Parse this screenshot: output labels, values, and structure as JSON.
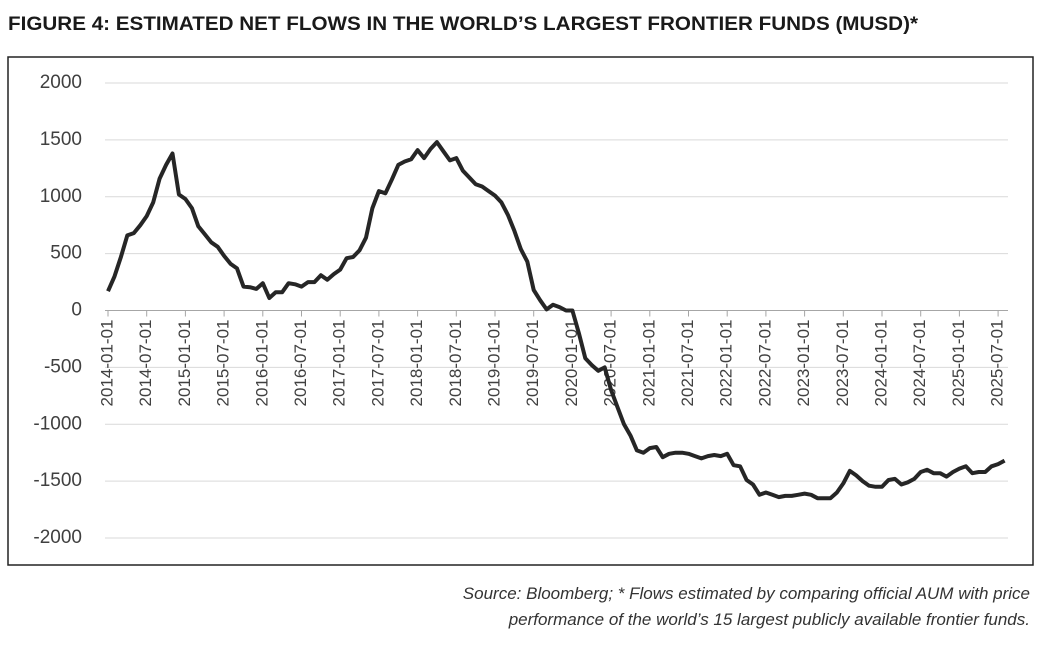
{
  "chart_data": {
    "type": "line",
    "title": "FIGURE 4: ESTIMATED NET FLOWS IN THE WORLD’S LARGEST FRONTIER FUNDS (MUSD)*",
    "footnote": [
      "Source: Bloomberg; * Flows estimated by comparing official AUM with price",
      "performance of the world’s 15 largest publicly available frontier funds."
    ],
    "categories": [
      "2014-01-01",
      null,
      null,
      null,
      null,
      null,
      "2014-07-01",
      null,
      null,
      null,
      null,
      null,
      "2015-01-01",
      null,
      null,
      null,
      null,
      null,
      "2015-07-01",
      null,
      null,
      null,
      null,
      null,
      "2016-01-01",
      null,
      null,
      null,
      null,
      null,
      "2016-07-01",
      null,
      null,
      null,
      null,
      null,
      "2017-01-01",
      null,
      null,
      null,
      null,
      null,
      "2017-07-01",
      null,
      null,
      null,
      null,
      null,
      "2018-01-01",
      null,
      null,
      null,
      null,
      null,
      "2018-07-01",
      null,
      null,
      null,
      null,
      null,
      "2019-01-01",
      null,
      null,
      null,
      null,
      null,
      "2019-07-01",
      null,
      null,
      null,
      null,
      null,
      "2020-01-01",
      null,
      null,
      null,
      null,
      null,
      "2020-07-01",
      null,
      null,
      null,
      null,
      null,
      "2021-01-01",
      null,
      null,
      null,
      null,
      null,
      "2021-07-01",
      null,
      null,
      null,
      null,
      null,
      "2022-01-01",
      null,
      null,
      null,
      null,
      null,
      "2022-07-01",
      null,
      null,
      null,
      null,
      null,
      "2023-01-01",
      null,
      null,
      null,
      null,
      null,
      "2023-07-01",
      null,
      null,
      null,
      null,
      null,
      "2024-01-01",
      null,
      null,
      null,
      null,
      null,
      "2024-07-01",
      null,
      null,
      null,
      null,
      null,
      "2025-01-01",
      null,
      null,
      null,
      null,
      null,
      "2025-07-01",
      null
    ],
    "series": [
      {
        "name": "Estimated net flows",
        "color": "#262626",
        "values": [
          170,
          300,
          470,
          660,
          680,
          750,
          830,
          950,
          1160,
          1280,
          1380,
          1020,
          980,
          900,
          740,
          670,
          600,
          560,
          480,
          410,
          370,
          210,
          205,
          190,
          240,
          110,
          160,
          160,
          240,
          230,
          210,
          250,
          250,
          310,
          270,
          320,
          360,
          460,
          470,
          530,
          640,
          900,
          1050,
          1030,
          1150,
          1280,
          1310,
          1330,
          1410,
          1340,
          1420,
          1480,
          1400,
          1320,
          1340,
          1230,
          1170,
          1110,
          1090,
          1050,
          1010,
          950,
          840,
          700,
          540,
          430,
          180,
          90,
          10,
          50,
          30,
          0,
          0,
          -200,
          -420,
          -480,
          -530,
          -500,
          -700,
          -850,
          -1000,
          -1100,
          -1230,
          -1250,
          -1210,
          -1200,
          -1290,
          -1260,
          -1250,
          -1250,
          -1260,
          -1280,
          -1300,
          -1280,
          -1270,
          -1280,
          -1260,
          -1360,
          -1370,
          -1490,
          -1530,
          -1620,
          -1600,
          -1620,
          -1640,
          -1630,
          -1630,
          -1620,
          -1610,
          -1620,
          -1650,
          -1650,
          -1650,
          -1600,
          -1520,
          -1410,
          -1450,
          -1500,
          -1540,
          -1550,
          -1550,
          -1490,
          -1480,
          -1530,
          -1510,
          -1480,
          -1420,
          -1400,
          -1430,
          -1430,
          -1460,
          -1420,
          -1390,
          -1370,
          -1430,
          -1420,
          -1420,
          -1370,
          -1350,
          -1320
        ]
      }
    ],
    "ylim": [
      -2000,
      2000
    ],
    "yticks": [
      -2000,
      -1500,
      -1000,
      -500,
      0,
      500,
      1000,
      1500,
      2000
    ],
    "grid": true
  }
}
